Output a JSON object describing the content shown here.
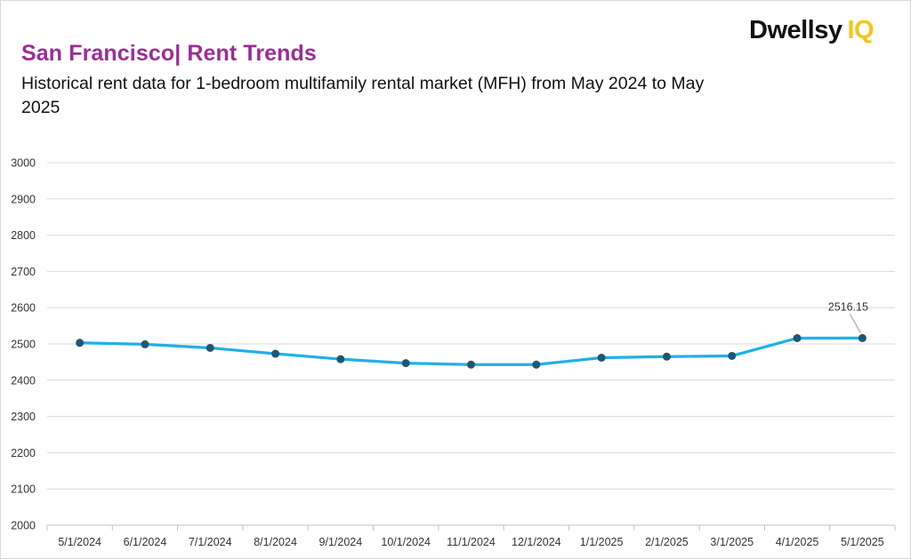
{
  "header": {
    "title": "San Francisco| Rent Trends",
    "subtitle": "Historical rent data for 1-bedroom multifamily rental market (MFH) from May 2024 to May 2025",
    "logo_main": "Dwellsy",
    "logo_accent": "IQ"
  },
  "colors": {
    "title": "#9b2d96",
    "line": "#1fb0e8",
    "marker": "#1f5673",
    "grid": "#d9d9d9",
    "logo_accent": "#f5c518"
  },
  "chart_data": {
    "type": "line",
    "title": "San Francisco| Rent Trends",
    "subtitle": "Historical rent data for 1-bedroom multifamily rental market (MFH) from May 2024 to May 2025",
    "xlabel": "",
    "ylabel": "",
    "categories": [
      "5/1/2024",
      "6/1/2024",
      "7/1/2024",
      "8/1/2024",
      "9/1/2024",
      "10/1/2024",
      "11/1/2024",
      "12/1/2024",
      "1/1/2025",
      "2/1/2025",
      "3/1/2025",
      "4/1/2025",
      "5/1/2025"
    ],
    "series": [
      {
        "values": [
          2503,
          2499,
          2489,
          2473,
          2458,
          2447,
          2443,
          2443,
          2462,
          2465,
          2467,
          2516,
          2516.15
        ]
      }
    ],
    "ylim": [
      2000,
      3000
    ],
    "yticks": [
      2000,
      2100,
      2200,
      2300,
      2400,
      2500,
      2600,
      2700,
      2800,
      2900,
      3000
    ],
    "grid": true,
    "legend": "none",
    "annotation": {
      "index": 12,
      "text": "2516.15"
    }
  }
}
